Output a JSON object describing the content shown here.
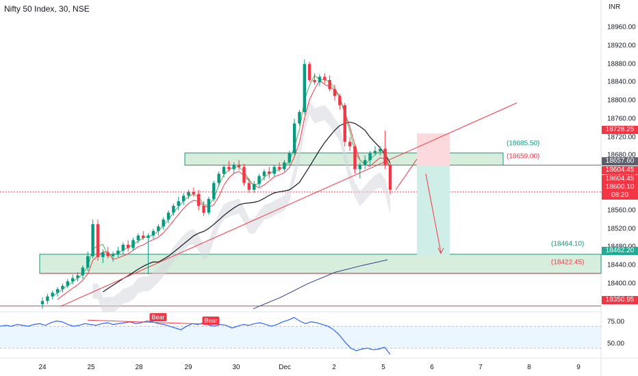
{
  "header": {
    "title": "Nifty 50 Index, 30, NSE",
    "currency": "INR"
  },
  "price_axis": {
    "ticks": [
      "18960.00",
      "18920.00",
      "18880.00",
      "18840.00",
      "18800.00",
      "18760.00",
      "18720.00",
      "18680.00",
      "18640.00",
      "18560.00",
      "18520.00",
      "18480.00",
      "18440.00",
      "18400.00",
      "18360.00"
    ]
  },
  "rsi_axis": {
    "ticks": [
      "75.00",
      "50.00"
    ]
  },
  "time_axis": {
    "ticks": [
      "24",
      "25",
      "28",
      "29",
      "30",
      "Dec",
      "2",
      "5",
      "6",
      "7",
      "8",
      "9"
    ]
  },
  "price_tags": [
    {
      "label": "18728.25",
      "color": "#f23645"
    },
    {
      "label": "18657.60",
      "color": "#5d606b"
    },
    {
      "label": "18604.45",
      "color": "#f23645"
    },
    {
      "label": "18604.45",
      "color": "#f23645"
    },
    {
      "label": "18600.10\n08:20",
      "color": "#f23645"
    },
    {
      "label": "18462.20",
      "color": "#22ab94"
    },
    {
      "label": "18350.95",
      "color": "#f23645"
    }
  ],
  "zone_labels": [
    {
      "label": "(18685.50)",
      "color": "#089981"
    },
    {
      "label": "(18659.00)",
      "color": "#f23645"
    },
    {
      "label": "(18464.10)",
      "color": "#089981"
    },
    {
      "label": "(18422.45)",
      "color": "#f23645"
    }
  ],
  "divergence_labels": [
    "Bear",
    "Bear"
  ],
  "colors": {
    "up": "#089981",
    "down": "#f23645",
    "ma_black": "#131722",
    "ma_blue": "#2a3f8f",
    "trend": "#f23645",
    "rsi": "#2962ff",
    "zone_green": "#d7eedc",
    "zone_red": "#fbd9dd",
    "target": "#cfeee8"
  },
  "chart_data": {
    "type": "candlestick",
    "title": "Nifty 50 Index, 30, NSE",
    "y_range": [
      18340,
      18990
    ],
    "key_levels": [
      18728.25,
      18685.5,
      18659.0,
      18657.6,
      18604.45,
      18600.1,
      18464.1,
      18462.2,
      18422.45,
      18350.95
    ],
    "candles": [
      [
        18355,
        18370,
        18345,
        18362
      ],
      [
        18362,
        18378,
        18355,
        18372
      ],
      [
        18372,
        18385,
        18365,
        18380
      ],
      [
        18380,
        18392,
        18372,
        18388
      ],
      [
        18388,
        18400,
        18380,
        18395
      ],
      [
        18395,
        18410,
        18390,
        18405
      ],
      [
        18405,
        18420,
        18398,
        18412
      ],
      [
        18412,
        18425,
        18405,
        18418
      ],
      [
        18418,
        18440,
        18410,
        18435
      ],
      [
        18435,
        18470,
        18428,
        18460
      ],
      [
        18460,
        18540,
        18455,
        18530
      ],
      [
        18530,
        18540,
        18450,
        18458
      ],
      [
        18458,
        18475,
        18445,
        18468
      ],
      [
        18468,
        18480,
        18455,
        18460
      ],
      [
        18460,
        18470,
        18448,
        18465
      ],
      [
        18465,
        18480,
        18458,
        18472
      ],
      [
        18472,
        18490,
        18465,
        18485
      ],
      [
        18485,
        18495,
        18470,
        18478
      ],
      [
        18478,
        18500,
        18472,
        18495
      ],
      [
        18495,
        18510,
        18488,
        18505
      ],
      [
        18505,
        18515,
        18495,
        18500
      ],
      [
        18500,
        18510,
        18420,
        18505
      ],
      [
        18505,
        18520,
        18498,
        18515
      ],
      [
        18515,
        18530,
        18505,
        18525
      ],
      [
        18525,
        18545,
        18518,
        18540
      ],
      [
        18540,
        18560,
        18532,
        18555
      ],
      [
        18555,
        18575,
        18548,
        18570
      ],
      [
        18570,
        18590,
        18560,
        18580
      ],
      [
        18580,
        18598,
        18572,
        18592
      ],
      [
        18592,
        18605,
        18585,
        18600
      ],
      [
        18600,
        18610,
        18590,
        18596
      ],
      [
        18596,
        18605,
        18560,
        18570
      ],
      [
        18570,
        18580,
        18548,
        18555
      ],
      [
        18555,
        18590,
        18550,
        18585
      ],
      [
        18585,
        18625,
        18580,
        18620
      ],
      [
        18620,
        18645,
        18612,
        18640
      ],
      [
        18640,
        18660,
        18632,
        18655
      ],
      [
        18655,
        18668,
        18645,
        18650
      ],
      [
        18650,
        18665,
        18640,
        18660
      ],
      [
        18660,
        18670,
        18648,
        18655
      ],
      [
        18655,
        18662,
        18615,
        18620
      ],
      [
        18620,
        18630,
        18598,
        18605
      ],
      [
        18605,
        18625,
        18598,
        18618
      ],
      [
        18618,
        18640,
        18612,
        18635
      ],
      [
        18635,
        18650,
        18625,
        18645
      ],
      [
        18645,
        18655,
        18630,
        18640
      ],
      [
        18640,
        18660,
        18635,
        18655
      ],
      [
        18655,
        18665,
        18645,
        18650
      ],
      [
        18650,
        18670,
        18645,
        18665
      ],
      [
        18665,
        18690,
        18660,
        18685
      ],
      [
        18685,
        18760,
        18680,
        18750
      ],
      [
        18750,
        18780,
        18745,
        18775
      ],
      [
        18775,
        18890,
        18770,
        18880
      ],
      [
        18880,
        18885,
        18840,
        18845
      ],
      [
        18845,
        18860,
        18835,
        18840
      ],
      [
        18840,
        18858,
        18832,
        18852
      ],
      [
        18852,
        18860,
        18838,
        18845
      ],
      [
        18845,
        18855,
        18820,
        18825
      ],
      [
        18825,
        18835,
        18800,
        18810
      ],
      [
        18810,
        18815,
        18780,
        18790
      ],
      [
        18790,
        18795,
        18700,
        18710
      ],
      [
        18710,
        18720,
        18690,
        18700
      ],
      [
        18700,
        18705,
        18640,
        18650
      ],
      [
        18650,
        18665,
        18630,
        18660
      ],
      [
        18660,
        18680,
        18650,
        18670
      ],
      [
        18670,
        18690,
        18660,
        18685
      ],
      [
        18685,
        18700,
        18680,
        18690
      ],
      [
        18690,
        18700,
        18680,
        18695
      ],
      [
        18695,
        18735,
        18650,
        18660
      ],
      [
        18660,
        18665,
        18595,
        18605
      ]
    ],
    "rsi_range": [
      35,
      85
    ],
    "rsi": [
      70,
      71,
      70,
      72,
      71,
      70,
      72,
      73,
      71,
      74,
      76,
      75,
      72,
      70,
      71,
      73,
      72,
      71,
      73,
      74,
      72,
      73,
      74,
      75,
      73,
      74,
      76,
      75,
      73,
      72,
      70,
      68,
      66,
      70,
      73,
      72,
      74,
      71,
      70,
      72,
      71,
      68,
      70,
      72,
      71,
      73,
      74,
      72,
      70,
      72,
      75,
      77,
      80,
      76,
      73,
      75,
      74,
      72,
      70,
      66,
      60,
      52,
      45,
      42,
      44,
      45,
      43,
      44,
      46,
      38
    ]
  }
}
